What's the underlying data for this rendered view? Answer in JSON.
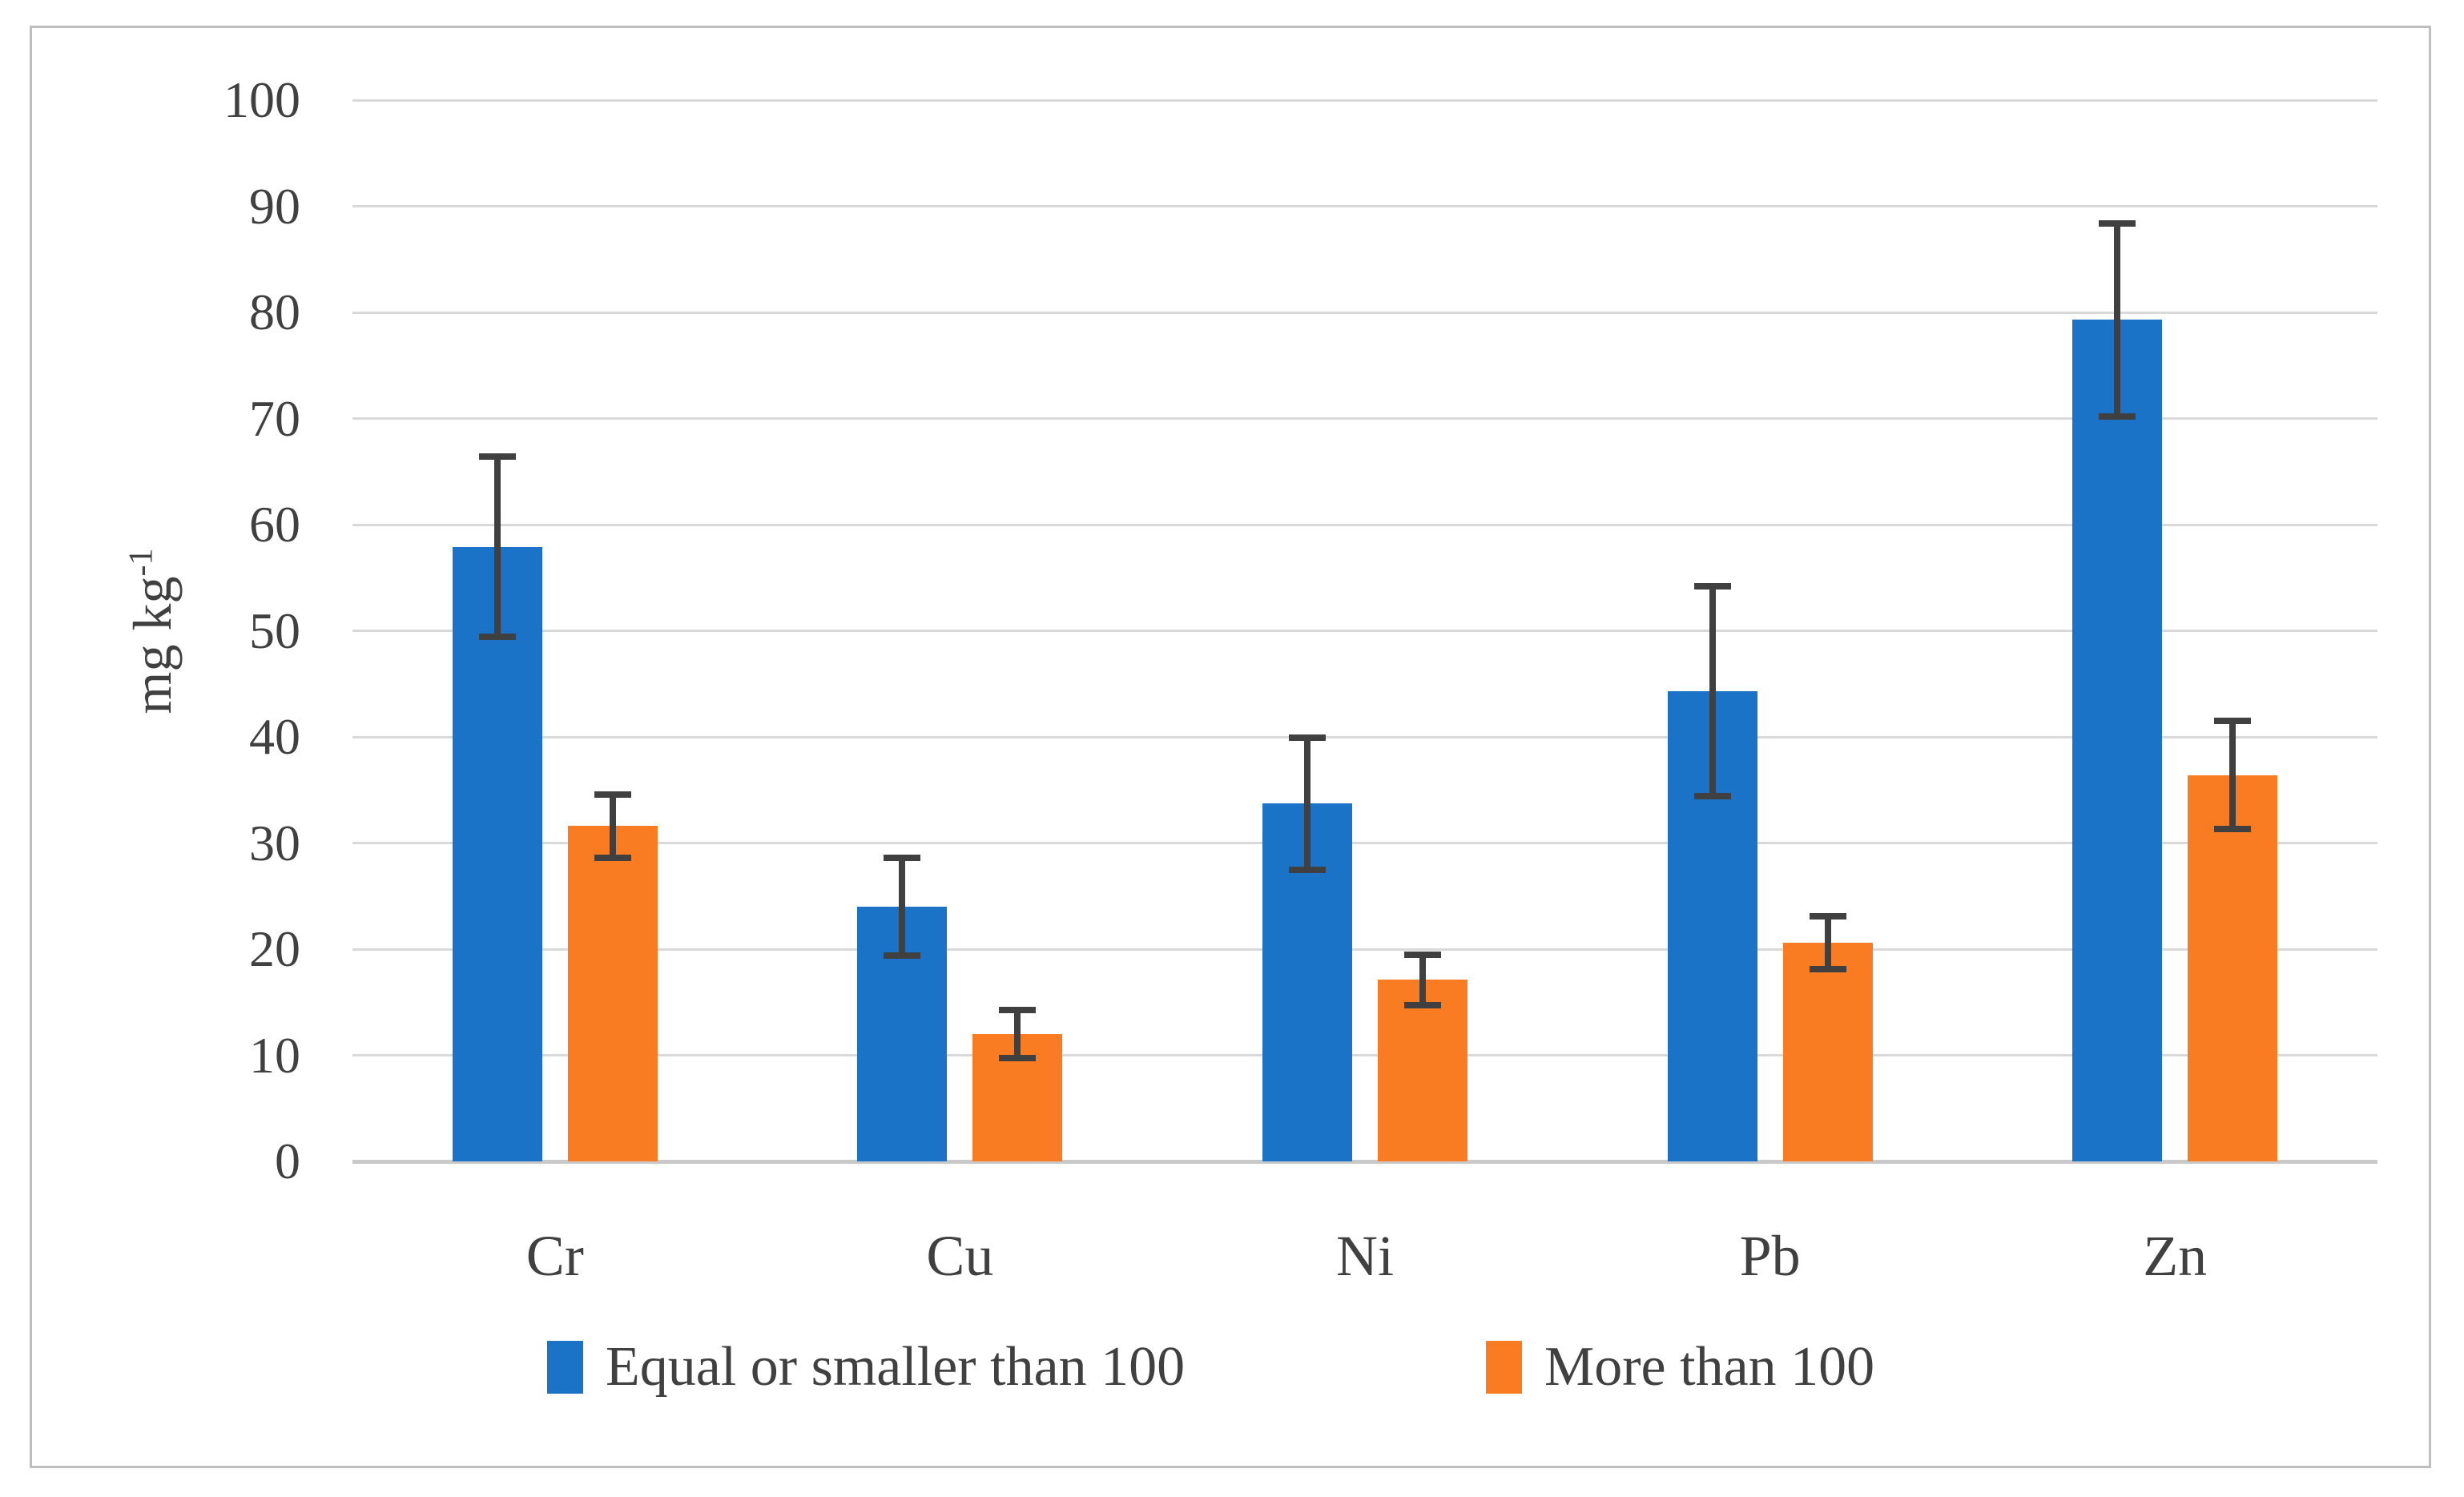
{
  "chart_data": {
    "type": "bar",
    "title": "",
    "ylabel_base": "mg kg",
    "ylabel_exponent": "-1",
    "xlabel": "",
    "ylim": [
      0,
      100
    ],
    "yticks": [
      0,
      10,
      20,
      30,
      40,
      50,
      60,
      70,
      80,
      90,
      100
    ],
    "grid": true,
    "legend_position": "bottom",
    "categories": [
      "Cr",
      "Cu",
      "Ni",
      "Pb",
      "Zn"
    ],
    "series": [
      {
        "name": "Equal or smaller than 100",
        "color": "#1b73c8",
        "values": [
          57.9,
          24.0,
          33.7,
          44.3,
          79.3
        ],
        "errors": [
          8.5,
          4.6,
          6.2,
          9.9,
          9.1
        ]
      },
      {
        "name": "More than 100",
        "color": "#f97c22",
        "values": [
          31.6,
          12.0,
          17.1,
          20.6,
          36.4
        ],
        "errors": [
          3.0,
          2.3,
          2.4,
          2.5,
          5.1
        ]
      }
    ],
    "error_bar_color": "#404040",
    "gridline_color": "#d9d9d9",
    "text_color": "#404040"
  }
}
